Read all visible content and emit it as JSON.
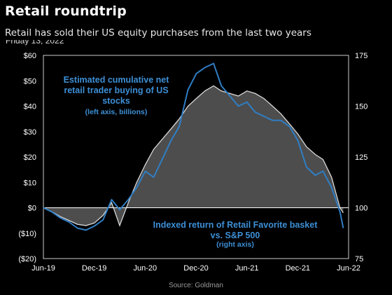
{
  "header": {
    "title": "Retail roundtrip",
    "subtitle": "Retail has sold their US equity purchases from the last two years",
    "date_stub": "Friday 13, 2022"
  },
  "footer": {
    "source": "Source: Goldman"
  },
  "colors": {
    "background": "#000000",
    "plot_area": "#000000",
    "area_fill": "#4d4d4d",
    "area_line": "#d9d9d9",
    "blue_line": "#2f7ec4",
    "annotation": "#3d8fd6",
    "axis_text": "#ffffff"
  },
  "chart_data": {
    "type": "area",
    "x_axis": {
      "type": "date",
      "ticks": [
        "Jun-19",
        "Dec-19",
        "Jun-20",
        "Dec-20",
        "Jun-21",
        "Dec-21",
        "Jun-22"
      ],
      "range": [
        "2019-06-01",
        "2022-06-01"
      ]
    },
    "left_axis": {
      "ticks": [
        "$60",
        "$50",
        "$40",
        "$30",
        "$20",
        "$10",
        "$0",
        "($10)",
        "($20)"
      ],
      "range": [
        -20,
        60
      ]
    },
    "right_axis": {
      "ticks": [
        "175",
        "150",
        "125",
        "100",
        "75"
      ],
      "range": [
        75,
        175
      ]
    },
    "series": [
      {
        "name": "Estimated cumulative net retail trader buying of US stocks",
        "axis": "left",
        "style": "area",
        "points": [
          [
            "2019-06-01",
            0
          ],
          [
            "2019-07-01",
            -1.5
          ],
          [
            "2019-08-01",
            -3.5
          ],
          [
            "2019-09-01",
            -5
          ],
          [
            "2019-10-01",
            -6.5
          ],
          [
            "2019-11-01",
            -7
          ],
          [
            "2019-12-01",
            -6
          ],
          [
            "2020-01-01",
            -3
          ],
          [
            "2020-02-01",
            2
          ],
          [
            "2020-03-01",
            -7
          ],
          [
            "2020-04-01",
            2
          ],
          [
            "2020-05-01",
            10
          ],
          [
            "2020-06-01",
            17
          ],
          [
            "2020-07-01",
            23
          ],
          [
            "2020-08-01",
            27
          ],
          [
            "2020-09-01",
            31
          ],
          [
            "2020-10-01",
            35
          ],
          [
            "2020-11-01",
            40
          ],
          [
            "2020-12-01",
            43
          ],
          [
            "2021-01-01",
            46
          ],
          [
            "2021-02-01",
            48
          ],
          [
            "2021-03-01",
            46
          ],
          [
            "2021-04-01",
            45
          ],
          [
            "2021-05-01",
            44
          ],
          [
            "2021-06-01",
            46
          ],
          [
            "2021-07-01",
            45
          ],
          [
            "2021-08-01",
            43
          ],
          [
            "2021-09-01",
            40
          ],
          [
            "2021-10-01",
            37
          ],
          [
            "2021-11-01",
            33
          ],
          [
            "2021-12-01",
            29
          ],
          [
            "2022-01-01",
            24
          ],
          [
            "2022-02-01",
            21
          ],
          [
            "2022-03-01",
            19
          ],
          [
            "2022-04-01",
            12
          ],
          [
            "2022-05-01",
            0
          ],
          [
            "2022-05-13",
            -2
          ]
        ]
      },
      {
        "name": "Indexed return of Retail Favorite basket vs. S&P 500",
        "axis": "right",
        "style": "line",
        "points": [
          [
            "2019-06-01",
            100
          ],
          [
            "2019-07-01",
            98
          ],
          [
            "2019-08-01",
            95
          ],
          [
            "2019-09-01",
            93
          ],
          [
            "2019-10-01",
            90
          ],
          [
            "2019-11-01",
            89
          ],
          [
            "2019-12-01",
            91
          ],
          [
            "2020-01-01",
            94
          ],
          [
            "2020-02-01",
            104
          ],
          [
            "2020-03-01",
            99
          ],
          [
            "2020-04-01",
            104
          ],
          [
            "2020-05-01",
            110
          ],
          [
            "2020-06-01",
            118
          ],
          [
            "2020-07-01",
            115
          ],
          [
            "2020-08-01",
            124
          ],
          [
            "2020-09-01",
            133
          ],
          [
            "2020-10-01",
            140
          ],
          [
            "2020-11-01",
            158
          ],
          [
            "2020-12-01",
            166
          ],
          [
            "2021-01-01",
            169
          ],
          [
            "2021-02-01",
            171
          ],
          [
            "2021-03-01",
            160
          ],
          [
            "2021-04-01",
            155
          ],
          [
            "2021-05-01",
            150
          ],
          [
            "2021-06-01",
            152
          ],
          [
            "2021-07-01",
            147
          ],
          [
            "2021-08-01",
            145
          ],
          [
            "2021-09-01",
            143
          ],
          [
            "2021-10-01",
            143
          ],
          [
            "2021-11-01",
            140
          ],
          [
            "2021-12-01",
            133
          ],
          [
            "2022-01-01",
            120
          ],
          [
            "2022-02-01",
            116
          ],
          [
            "2022-03-01",
            118
          ],
          [
            "2022-04-01",
            110
          ],
          [
            "2022-05-01",
            98
          ],
          [
            "2022-05-13",
            90
          ]
        ]
      }
    ],
    "annotations": [
      {
        "lines": [
          "Estimated cumulative net",
          "retail trader buying of US",
          "stocks"
        ],
        "sub": "(left axis, billions)"
      },
      {
        "lines": [
          "Indexed return of Retail Favorite basket",
          "vs. S&P 500"
        ],
        "sub": "(right axis)"
      }
    ],
    "grid": false,
    "legend": "none"
  }
}
